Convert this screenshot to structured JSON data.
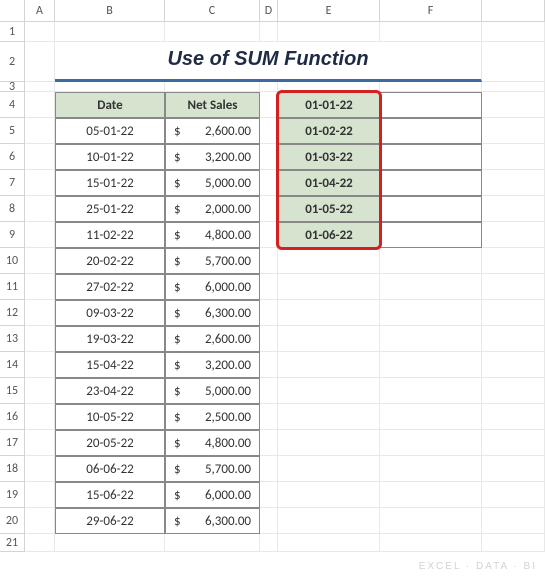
{
  "columns": [
    "A",
    "B",
    "C",
    "D",
    "E",
    "F"
  ],
  "title": "Use of SUM Function",
  "headers": {
    "date": "Date",
    "sales": "Net Sales"
  },
  "rows": [
    {
      "date": "05-01-22",
      "sales": "2,600.00"
    },
    {
      "date": "10-01-22",
      "sales": "3,200.00"
    },
    {
      "date": "15-01-22",
      "sales": "5,000.00"
    },
    {
      "date": "25-01-22",
      "sales": "2,000.00"
    },
    {
      "date": "11-02-22",
      "sales": "4,800.00"
    },
    {
      "date": "20-02-22",
      "sales": "5,700.00"
    },
    {
      "date": "27-02-22",
      "sales": "6,000.00"
    },
    {
      "date": "09-03-22",
      "sales": "6,300.00"
    },
    {
      "date": "19-03-22",
      "sales": "2,600.00"
    },
    {
      "date": "15-04-22",
      "sales": "3,200.00"
    },
    {
      "date": "23-04-22",
      "sales": "5,000.00"
    },
    {
      "date": "10-05-22",
      "sales": "2,500.00"
    },
    {
      "date": "20-05-22",
      "sales": "4,800.00"
    },
    {
      "date": "06-06-22",
      "sales": "5,700.00"
    },
    {
      "date": "15-06-22",
      "sales": "6,000.00"
    },
    {
      "date": "29-06-22",
      "sales": "6,300.00"
    }
  ],
  "side": [
    "01-01-22",
    "01-02-22",
    "01-03-22",
    "01-04-22",
    "01-05-22",
    "01-06-22"
  ],
  "currency": "$",
  "watermark": "EXCEL · DATA · BI",
  "colors": {
    "header_bg": "#d5e3cf",
    "title_underline": "#3a6aa0",
    "highlight_border": "#d42020",
    "grid_border": "#888888"
  }
}
